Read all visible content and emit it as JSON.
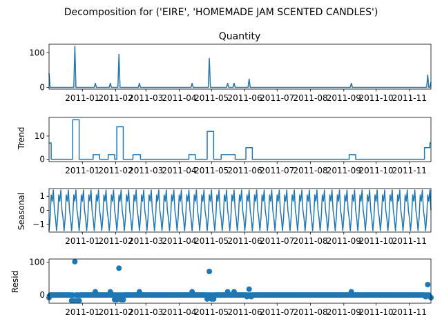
{
  "figure_title": "Decomposition for ('EIRE', 'HOMEMADE JAM SCENTED CANDLES')",
  "chart_data": [
    {
      "type": "line",
      "title": "Quantity",
      "ylabel": "",
      "ylim": [
        -5,
        125
      ],
      "yticks": [
        0,
        100
      ],
      "x_range": [
        "2010-12-01",
        "2011-11-21"
      ],
      "xtick_labels": [
        "2011-01",
        "2011-02",
        "2011-03",
        "2011-04",
        "2011-05",
        "2011-06",
        "2011-07",
        "2011-08",
        "2011-09",
        "2011-10",
        "2011-11"
      ],
      "color": "#1f77b4",
      "baseline": 0,
      "start_value": 41,
      "end_value": 15,
      "spikes": [
        {
          "date": "2010-12-25",
          "value": 119
        },
        {
          "date": "2011-01-13",
          "value": 12
        },
        {
          "date": "2011-01-27",
          "value": 12
        },
        {
          "date": "2011-02-04",
          "value": 96
        },
        {
          "date": "2011-02-23",
          "value": 12
        },
        {
          "date": "2011-04-13",
          "value": 12
        },
        {
          "date": "2011-04-29",
          "value": 84
        },
        {
          "date": "2011-05-16",
          "value": 12
        },
        {
          "date": "2011-05-22",
          "value": 12
        },
        {
          "date": "2011-06-05",
          "value": 24
        },
        {
          "date": "2011-09-08",
          "value": 12
        },
        {
          "date": "2011-11-18",
          "value": 36
        }
      ]
    },
    {
      "type": "line",
      "title": "",
      "ylabel": "Trend",
      "ylim": [
        -1,
        18
      ],
      "yticks": [
        0,
        10
      ],
      "x_range": [
        "2010-12-01",
        "2011-11-21"
      ],
      "xtick_labels": [
        "2011-01",
        "2011-02",
        "2011-03",
        "2011-04",
        "2011-05",
        "2011-06",
        "2011-07",
        "2011-08",
        "2011-09",
        "2011-10",
        "2011-11"
      ],
      "color": "#1f77b4",
      "steps": [
        {
          "from": "2010-12-01",
          "to": "2010-12-03",
          "value": 7
        },
        {
          "from": "2010-12-03",
          "to": "2010-12-23",
          "value": 0
        },
        {
          "from": "2010-12-23",
          "to": "2010-12-29",
          "value": 17
        },
        {
          "from": "2010-12-29",
          "to": "2011-01-11",
          "value": 0
        },
        {
          "from": "2011-01-11",
          "to": "2011-01-17",
          "value": 2
        },
        {
          "from": "2011-01-17",
          "to": "2011-01-25",
          "value": 0
        },
        {
          "from": "2011-01-25",
          "to": "2011-01-31",
          "value": 2
        },
        {
          "from": "2011-01-31",
          "to": "2011-02-02",
          "value": 0
        },
        {
          "from": "2011-02-02",
          "to": "2011-02-08",
          "value": 14
        },
        {
          "from": "2011-02-08",
          "to": "2011-02-17",
          "value": 0
        },
        {
          "from": "2011-02-17",
          "to": "2011-02-24",
          "value": 2
        },
        {
          "from": "2011-02-24",
          "to": "2011-04-10",
          "value": 0
        },
        {
          "from": "2011-04-10",
          "to": "2011-04-16",
          "value": 2
        },
        {
          "from": "2011-04-16",
          "to": "2011-04-27",
          "value": 0
        },
        {
          "from": "2011-04-27",
          "to": "2011-05-03",
          "value": 12
        },
        {
          "from": "2011-05-03",
          "to": "2011-05-10",
          "value": 0
        },
        {
          "from": "2011-05-10",
          "to": "2011-05-23",
          "value": 2
        },
        {
          "from": "2011-05-23",
          "to": "2011-06-02",
          "value": 0
        },
        {
          "from": "2011-06-02",
          "to": "2011-06-08",
          "value": 5
        },
        {
          "from": "2011-06-08",
          "to": "2011-09-06",
          "value": 0
        },
        {
          "from": "2011-09-06",
          "to": "2011-09-12",
          "value": 2
        },
        {
          "from": "2011-09-12",
          "to": "2011-11-15",
          "value": 0
        },
        {
          "from": "2011-11-15",
          "to": "2011-11-20",
          "value": 5
        },
        {
          "from": "2011-11-20",
          "to": "2011-11-21",
          "value": 7
        }
      ]
    },
    {
      "type": "line",
      "title": "",
      "ylabel": "Seasonal",
      "ylim": [
        -1.55,
        1.55
      ],
      "yticks": [
        -1,
        0,
        1
      ],
      "x_range": [
        "2010-12-01",
        "2011-11-21"
      ],
      "xtick_labels": [
        "2011-01",
        "2011-02",
        "2011-03",
        "2011-04",
        "2011-05",
        "2011-06",
        "2011-07",
        "2011-08",
        "2011-09",
        "2011-10",
        "2011-11"
      ],
      "color": "#1f77b4",
      "period_days": 7,
      "weekly_pattern": [
        -1.45,
        -0.55,
        1.1,
        0.65,
        1.45,
        0.0,
        -0.55
      ]
    },
    {
      "type": "scatter",
      "title": "",
      "ylabel": "Resid",
      "ylim": [
        -25,
        110
      ],
      "yticks": [
        0,
        100
      ],
      "x_range": [
        "2010-12-01",
        "2011-11-21"
      ],
      "xtick_labels": [
        "2011-01",
        "2011-02",
        "2011-03",
        "2011-04",
        "2011-05",
        "2011-06",
        "2011-07",
        "2011-08",
        "2011-09",
        "2011-10",
        "2011-11"
      ],
      "color": "#1f77b4",
      "baseline": 0,
      "points": [
        {
          "date": "2010-12-01",
          "value": -8
        },
        {
          "date": "2010-12-22",
          "value": -17
        },
        {
          "date": "2010-12-24",
          "value": -17
        },
        {
          "date": "2010-12-25",
          "value": 102
        },
        {
          "date": "2010-12-27",
          "value": -17
        },
        {
          "date": "2010-12-29",
          "value": -17
        },
        {
          "date": "2011-01-13",
          "value": 10
        },
        {
          "date": "2011-01-27",
          "value": 10
        },
        {
          "date": "2011-01-31",
          "value": -14
        },
        {
          "date": "2011-02-02",
          "value": -14
        },
        {
          "date": "2011-02-04",
          "value": 82
        },
        {
          "date": "2011-02-06",
          "value": -14
        },
        {
          "date": "2011-02-08",
          "value": -14
        },
        {
          "date": "2011-02-23",
          "value": 10
        },
        {
          "date": "2011-04-13",
          "value": 10
        },
        {
          "date": "2011-04-27",
          "value": -12
        },
        {
          "date": "2011-04-29",
          "value": 72
        },
        {
          "date": "2011-05-01",
          "value": -12
        },
        {
          "date": "2011-05-03",
          "value": -12
        },
        {
          "date": "2011-05-16",
          "value": 10
        },
        {
          "date": "2011-05-22",
          "value": 10
        },
        {
          "date": "2011-06-03",
          "value": -5
        },
        {
          "date": "2011-06-05",
          "value": 18
        },
        {
          "date": "2011-06-07",
          "value": -5
        },
        {
          "date": "2011-09-08",
          "value": 10
        },
        {
          "date": "2011-11-16",
          "value": -5
        },
        {
          "date": "2011-11-18",
          "value": 32
        },
        {
          "date": "2011-11-20",
          "value": -5
        },
        {
          "date": "2011-11-21",
          "value": -8
        }
      ]
    }
  ]
}
